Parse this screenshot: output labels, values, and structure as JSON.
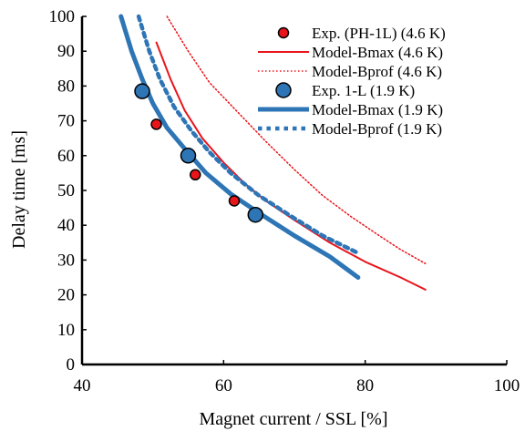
{
  "chart_data": {
    "type": "scatter",
    "xlabel": "Magnet current / SSL [%]",
    "ylabel": "Delay time [ms]",
    "xlim": [
      40,
      100
    ],
    "ylim": [
      0,
      100
    ],
    "xticks": [
      40,
      60,
      80,
      100
    ],
    "yticks": [
      0,
      10,
      20,
      30,
      40,
      50,
      60,
      70,
      80,
      90,
      100
    ],
    "grid": false,
    "legend_position": "top-right",
    "series": [
      {
        "name": "Exp. (PH-1L) (4.6 K)",
        "kind": "marker",
        "color": "#e8151b",
        "marker_size": "small",
        "points": [
          [
            50.5,
            69
          ],
          [
            56,
            54.5
          ],
          [
            61.5,
            47
          ]
        ]
      },
      {
        "name": "Model-Bmax (4.6 K)",
        "kind": "line",
        "style": "solid",
        "color": "#e8151b",
        "points": [
          [
            50.5,
            92.5
          ],
          [
            52.5,
            82
          ],
          [
            54.5,
            73
          ],
          [
            57,
            65
          ],
          [
            60,
            58
          ],
          [
            63,
            52
          ],
          [
            66,
            47
          ],
          [
            70,
            41.5
          ],
          [
            75,
            35
          ],
          [
            80,
            29.5
          ],
          [
            85,
            25
          ],
          [
            88.5,
            21.5
          ]
        ]
      },
      {
        "name": "Model-Bprof (4.6 K)",
        "kind": "line",
        "style": "dotted",
        "color": "#e8151b",
        "points": [
          [
            52,
            100
          ],
          [
            55,
            90
          ],
          [
            58,
            81
          ],
          [
            62,
            72.5
          ],
          [
            66,
            64
          ],
          [
            70,
            56
          ],
          [
            74,
            48.5
          ],
          [
            78,
            42.5
          ],
          [
            82,
            37
          ],
          [
            85,
            33
          ],
          [
            88.5,
            29
          ]
        ]
      },
      {
        "name": "Exp. 1-L (1.9 K)",
        "kind": "marker",
        "color": "#2e75b6",
        "marker_size": "large",
        "points": [
          [
            48.5,
            78.5
          ],
          [
            55,
            60
          ],
          [
            64.5,
            43
          ]
        ]
      },
      {
        "name": "Model-Bmax (1.9 K)",
        "kind": "line",
        "style": "solid-thick",
        "color": "#2e75b6",
        "points": [
          [
            45.5,
            100
          ],
          [
            47,
            90
          ],
          [
            48.5,
            82
          ],
          [
            50,
            75
          ],
          [
            52,
            68
          ],
          [
            54.5,
            62
          ],
          [
            57.5,
            55
          ],
          [
            61,
            49
          ],
          [
            65,
            43.5
          ],
          [
            70,
            37
          ],
          [
            75,
            31
          ],
          [
            79,
            25
          ]
        ]
      },
      {
        "name": "Model-Bprof (1.9 K)",
        "kind": "line",
        "style": "dotted-thick",
        "color": "#2e75b6",
        "points": [
          [
            48,
            100
          ],
          [
            49.5,
            90
          ],
          [
            51,
            82
          ],
          [
            53,
            74
          ],
          [
            55.5,
            67
          ],
          [
            58,
            61
          ],
          [
            61,
            55
          ],
          [
            65,
            48.5
          ],
          [
            70,
            42
          ],
          [
            74,
            37
          ],
          [
            79,
            32
          ]
        ]
      }
    ]
  }
}
